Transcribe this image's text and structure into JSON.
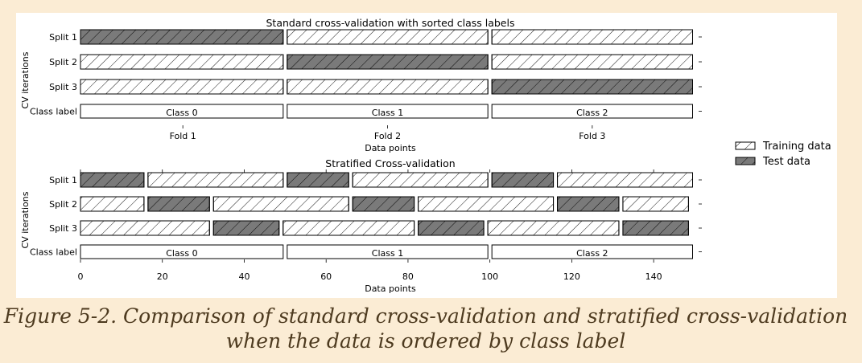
{
  "caption": {
    "line1": "Figure 5-2. Comparison of standard cross-validation and stratified cross-validation",
    "line2": "when the data is ordered by class label"
  },
  "legend": {
    "training": "Training data",
    "test": "Test data"
  },
  "colors": {
    "test": "#7a7a7a",
    "training": "#ffffff",
    "edge": "#000000",
    "background": "#fbecd4",
    "caption": "#4d3a1f"
  },
  "chart_data": [
    {
      "type": "bar",
      "title": "Standard cross-validation with sorted class labels",
      "xlabel": "Data points",
      "ylabel": "CV iterations",
      "row_labels": [
        "Split 1",
        "Split 2",
        "Split 3",
        "Class label"
      ],
      "xlim": [
        0,
        150
      ],
      "x_ticks": [
        {
          "value": 25,
          "label": "Fold 1"
        },
        {
          "value": 75,
          "label": "Fold 2"
        },
        {
          "value": 125,
          "label": "Fold 3"
        }
      ],
      "splits": [
        [
          {
            "start": 0,
            "end": 50,
            "kind": "test"
          },
          {
            "start": 50,
            "end": 100,
            "kind": "train"
          },
          {
            "start": 100,
            "end": 150,
            "kind": "train"
          }
        ],
        [
          {
            "start": 0,
            "end": 50,
            "kind": "train"
          },
          {
            "start": 50,
            "end": 100,
            "kind": "test"
          },
          {
            "start": 100,
            "end": 150,
            "kind": "train"
          }
        ],
        [
          {
            "start": 0,
            "end": 50,
            "kind": "train"
          },
          {
            "start": 50,
            "end": 100,
            "kind": "train"
          },
          {
            "start": 100,
            "end": 150,
            "kind": "test"
          }
        ]
      ],
      "classes": [
        {
          "start": 0,
          "end": 50,
          "label": "Class 0"
        },
        {
          "start": 50,
          "end": 100,
          "label": "Class 1"
        },
        {
          "start": 100,
          "end": 150,
          "label": "Class 2"
        }
      ]
    },
    {
      "type": "bar",
      "title": "Stratified Cross-validation",
      "xlabel": "Data points",
      "ylabel": "CV iterations",
      "row_labels": [
        "Split 1",
        "Split 2",
        "Split 3",
        "Class label"
      ],
      "xlim": [
        0,
        150
      ],
      "x_ticks": [
        {
          "value": 0,
          "label": "0"
        },
        {
          "value": 20,
          "label": "20"
        },
        {
          "value": 40,
          "label": "40"
        },
        {
          "value": 60,
          "label": "60"
        },
        {
          "value": 80,
          "label": "80"
        },
        {
          "value": 100,
          "label": "100"
        },
        {
          "value": 120,
          "label": "120"
        },
        {
          "value": 140,
          "label": "140"
        }
      ],
      "splits": [
        [
          {
            "start": 0,
            "end": 16,
            "kind": "test"
          },
          {
            "start": 16,
            "end": 50,
            "kind": "train"
          },
          {
            "start": 50,
            "end": 66,
            "kind": "test"
          },
          {
            "start": 66,
            "end": 100,
            "kind": "train"
          },
          {
            "start": 100,
            "end": 116,
            "kind": "test"
          },
          {
            "start": 116,
            "end": 150,
            "kind": "train"
          }
        ],
        [
          {
            "start": 0,
            "end": 16,
            "kind": "train"
          },
          {
            "start": 16,
            "end": 32,
            "kind": "test"
          },
          {
            "start": 32,
            "end": 66,
            "kind": "train"
          },
          {
            "start": 66,
            "end": 82,
            "kind": "test"
          },
          {
            "start": 82,
            "end": 116,
            "kind": "train"
          },
          {
            "start": 116,
            "end": 132,
            "kind": "test"
          },
          {
            "start": 132,
            "end": 149,
            "kind": "train"
          }
        ],
        [
          {
            "start": 0,
            "end": 32,
            "kind": "train"
          },
          {
            "start": 32,
            "end": 49,
            "kind": "test"
          },
          {
            "start": 49,
            "end": 82,
            "kind": "train"
          },
          {
            "start": 82,
            "end": 99,
            "kind": "test"
          },
          {
            "start": 99,
            "end": 132,
            "kind": "train"
          },
          {
            "start": 132,
            "end": 149,
            "kind": "test"
          }
        ]
      ],
      "classes": [
        {
          "start": 0,
          "end": 50,
          "label": "Class 0"
        },
        {
          "start": 50,
          "end": 100,
          "label": "Class 1"
        },
        {
          "start": 100,
          "end": 150,
          "label": "Class 2"
        }
      ]
    }
  ]
}
